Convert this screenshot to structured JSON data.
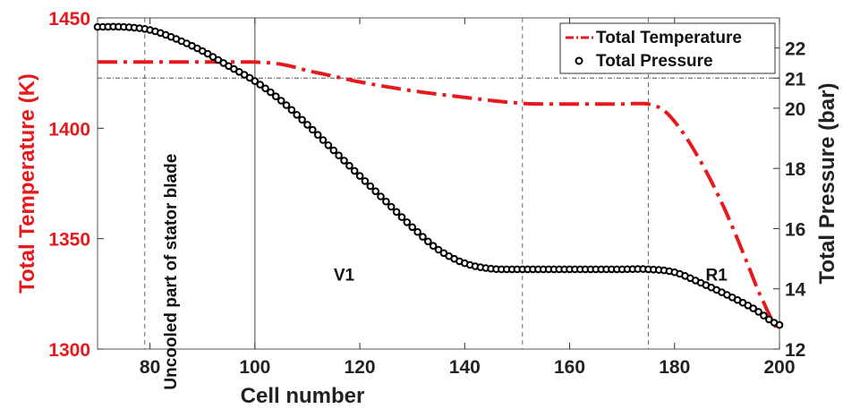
{
  "chart_data": {
    "type": "line",
    "xlabel": "Cell number",
    "ylabel_left": "Total Temperature (K)",
    "ylabel_right": "Total Pressure (bar)",
    "xlim": [
      70,
      200
    ],
    "ylim_left": [
      1300,
      1450
    ],
    "ylim_right": [
      12,
      23
    ],
    "x_ticks": [
      80,
      100,
      120,
      140,
      160,
      180,
      200
    ],
    "y_left_ticks": [
      1300,
      1350,
      1400,
      1450
    ],
    "y_right_ticks": [
      12,
      14,
      16,
      18,
      20,
      21,
      22
    ],
    "grid": false,
    "legend_position": "top-right",
    "colors": {
      "temperature": "#e8191c",
      "pressure": "#000000",
      "axis_left": "#e8191c"
    },
    "vertical_lines": [
      {
        "x": 79,
        "style": "dashed"
      },
      {
        "x": 100,
        "style": "solid"
      },
      {
        "x": 151,
        "style": "dashed"
      },
      {
        "x": 175,
        "style": "dashed"
      }
    ],
    "horizontal_line": {
      "axis": "right",
      "y": 21,
      "style": "dash-dot"
    },
    "annotations": [
      {
        "text": "Uncooled part of stator blade",
        "x": 85,
        "y": 1335,
        "rotation": -90
      },
      {
        "text": "V1",
        "x": 117,
        "y": 1331
      },
      {
        "text": "R1",
        "x": 188,
        "y": 1331
      }
    ],
    "series": [
      {
        "name": "Total Temperature",
        "axis": "left",
        "style": "dash-dot",
        "x": [
          70,
          80,
          90,
          100,
          105,
          110,
          120,
          130,
          140,
          150,
          155,
          160,
          165,
          170,
          175,
          178,
          181,
          184,
          187,
          190,
          193,
          196,
          200
        ],
        "y": [
          1430,
          1430,
          1430,
          1430,
          1429,
          1426,
          1421,
          1417,
          1414,
          1411.5,
          1411,
          1411,
          1411,
          1411,
          1411,
          1408,
          1400,
          1389,
          1376,
          1361,
          1344,
          1326,
          1308
        ]
      },
      {
        "name": "Total Pressure",
        "axis": "right",
        "style": "circles",
        "x": [
          70,
          75,
          80,
          85,
          90,
          95,
          100,
          105,
          110,
          115,
          120,
          125,
          130,
          135,
          140,
          145,
          150,
          155,
          160,
          165,
          170,
          175,
          180,
          185,
          190,
          195,
          200
        ],
        "y": [
          22.7,
          22.7,
          22.6,
          22.3,
          21.9,
          21.4,
          20.9,
          20.25,
          19.45,
          18.6,
          17.75,
          16.9,
          16.05,
          15.3,
          14.85,
          14.67,
          14.65,
          14.65,
          14.65,
          14.65,
          14.65,
          14.65,
          14.55,
          14.2,
          13.8,
          13.35,
          12.8
        ]
      }
    ]
  }
}
